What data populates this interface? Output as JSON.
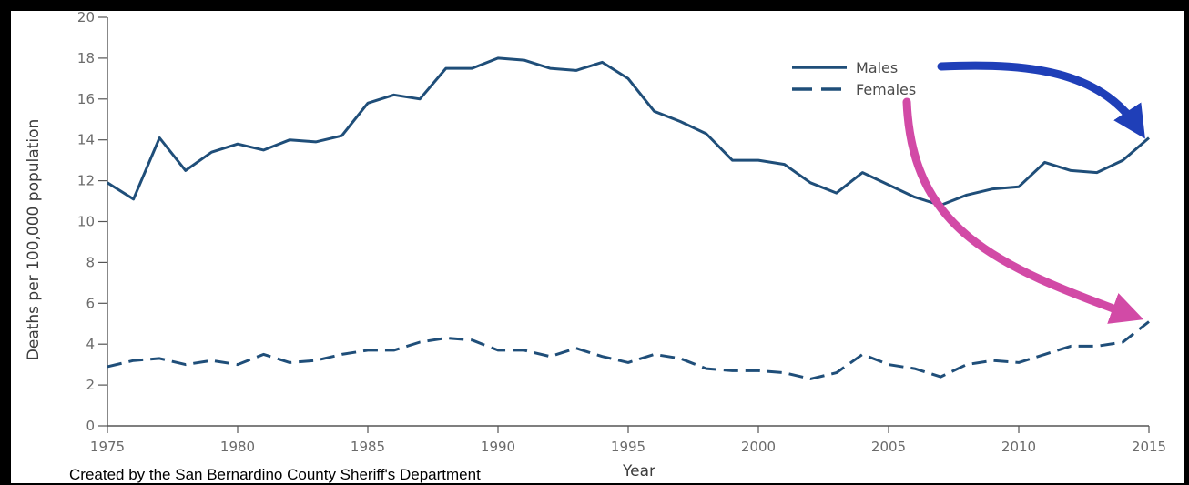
{
  "credit": "Created by the San Bernardino County Sheriff's Department",
  "chart_data": {
    "type": "line",
    "title": "",
    "xlabel": "Year",
    "ylabel": "Deaths per 100,000 population",
    "xlim": [
      1975,
      2015
    ],
    "ylim": [
      0,
      20
    ],
    "x_ticks": [
      1975,
      1980,
      1985,
      1990,
      1995,
      2000,
      2005,
      2010,
      2015
    ],
    "y_ticks": [
      0,
      2,
      4,
      6,
      8,
      10,
      12,
      14,
      16,
      18,
      20
    ],
    "grid": false,
    "legend_position": "top-right",
    "x": [
      1975,
      1976,
      1977,
      1978,
      1979,
      1980,
      1981,
      1982,
      1983,
      1984,
      1985,
      1986,
      1987,
      1988,
      1989,
      1990,
      1991,
      1992,
      1993,
      1994,
      1995,
      1996,
      1997,
      1998,
      1999,
      2000,
      2001,
      2002,
      2003,
      2004,
      2005,
      2006,
      2007,
      2008,
      2009,
      2010,
      2011,
      2012,
      2013,
      2014,
      2015
    ],
    "series": [
      {
        "name": "Males",
        "style": "solid",
        "color": "#1f4e79",
        "values": [
          11.9,
          11.1,
          14.1,
          12.5,
          13.4,
          13.8,
          13.5,
          14.0,
          13.9,
          14.2,
          15.8,
          16.2,
          16.0,
          17.5,
          17.5,
          18.0,
          17.9,
          17.5,
          17.4,
          17.8,
          17.0,
          15.4,
          14.9,
          14.3,
          13.0,
          13.0,
          12.8,
          11.9,
          11.4,
          12.4,
          11.8,
          11.2,
          10.8,
          11.3,
          11.6,
          11.7,
          12.9,
          12.5,
          12.4,
          13.0,
          14.1
        ]
      },
      {
        "name": "Females",
        "style": "dashed",
        "color": "#1f4e79",
        "values": [
          2.9,
          3.2,
          3.3,
          3.0,
          3.2,
          3.0,
          3.5,
          3.1,
          3.2,
          3.5,
          3.7,
          3.7,
          4.1,
          4.3,
          4.2,
          3.7,
          3.7,
          3.4,
          3.8,
          3.4,
          3.1,
          3.5,
          3.3,
          2.8,
          2.7,
          2.7,
          2.6,
          2.3,
          2.6,
          3.5,
          3.0,
          2.8,
          2.4,
          3.0,
          3.2,
          3.1,
          3.5,
          3.9,
          3.9,
          4.1,
          5.1
        ]
      }
    ],
    "annotations": [
      {
        "kind": "arrow",
        "color": "#1f3fb8",
        "from": "Males",
        "to_point": [
          2015,
          14.1
        ]
      },
      {
        "kind": "arrow",
        "color": "#d24aa6",
        "from": "Females",
        "to_point": [
          2015,
          5.1
        ]
      }
    ]
  }
}
